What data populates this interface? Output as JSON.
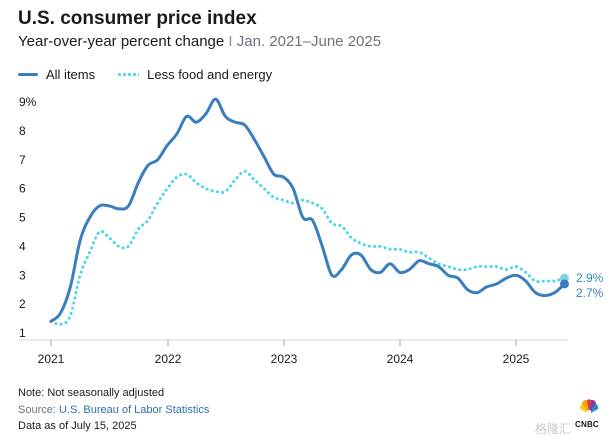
{
  "header": {
    "title": "U.S. consumer price index",
    "subtitle_main": "Year-over-year percent change",
    "subtitle_sep": " I ",
    "subtitle_range": "Jan. 2021–June 2025"
  },
  "colors": {
    "all_items": "#3a7ebf",
    "core": "#4ad6e6",
    "core_end_dot": "#7fd3e8",
    "axis_text": "#1a1a1a",
    "grid": "#e3e6ea"
  },
  "footer": {
    "note": "Note: Not seasonally adjusted",
    "source_prefix": "Source: ",
    "source_link": "U.S. Bureau of Labor Statistics",
    "asof": "Data as of July 15, 2025"
  },
  "logo": {
    "name": "cnbc-peacock-icon",
    "text": "CNBC"
  },
  "watermark": "格隆汇",
  "chart_data": {
    "type": "line",
    "x_start": "2021-01",
    "x_end": "2025-06",
    "ylim": [
      1,
      9
    ],
    "y_ticks": [
      "1",
      "2",
      "3",
      "4",
      "5",
      "6",
      "7",
      "8",
      "9%"
    ],
    "x_ticks": [
      "2021",
      "2022",
      "2023",
      "2024",
      "2025"
    ],
    "grid": false,
    "legend_position": "top-left",
    "series": [
      {
        "name": "All items",
        "style": "solid",
        "end_label": "2.7%",
        "x": [
          "2021-01",
          "2021-02",
          "2021-03",
          "2021-04",
          "2021-05",
          "2021-06",
          "2021-07",
          "2021-08",
          "2021-09",
          "2021-10",
          "2021-11",
          "2021-12",
          "2022-01",
          "2022-02",
          "2022-03",
          "2022-04",
          "2022-05",
          "2022-06",
          "2022-07",
          "2022-08",
          "2022-09",
          "2022-10",
          "2022-11",
          "2022-12",
          "2023-01",
          "2023-02",
          "2023-03",
          "2023-04",
          "2023-05",
          "2023-06",
          "2023-07",
          "2023-08",
          "2023-09",
          "2023-10",
          "2023-11",
          "2023-12",
          "2024-01",
          "2024-02",
          "2024-03",
          "2024-04",
          "2024-05",
          "2024-06",
          "2024-07",
          "2024-08",
          "2024-09",
          "2024-10",
          "2024-11",
          "2024-12",
          "2025-01",
          "2025-02",
          "2025-03",
          "2025-04",
          "2025-05",
          "2025-06"
        ],
        "values": [
          1.4,
          1.7,
          2.6,
          4.2,
          5.0,
          5.4,
          5.4,
          5.3,
          5.4,
          6.2,
          6.8,
          7.0,
          7.5,
          7.9,
          8.5,
          8.3,
          8.6,
          9.1,
          8.5,
          8.3,
          8.2,
          7.7,
          7.1,
          6.5,
          6.4,
          6.0,
          5.0,
          4.9,
          4.0,
          3.0,
          3.2,
          3.7,
          3.7,
          3.2,
          3.1,
          3.4,
          3.1,
          3.2,
          3.5,
          3.4,
          3.3,
          3.0,
          2.9,
          2.5,
          2.4,
          2.6,
          2.7,
          2.9,
          3.0,
          2.8,
          2.4,
          2.3,
          2.4,
          2.7
        ]
      },
      {
        "name": "Less food and energy",
        "style": "dotted",
        "end_label": "2.9%",
        "x": [
          "2021-01",
          "2021-02",
          "2021-03",
          "2021-04",
          "2021-05",
          "2021-06",
          "2021-07",
          "2021-08",
          "2021-09",
          "2021-10",
          "2021-11",
          "2021-12",
          "2022-01",
          "2022-02",
          "2022-03",
          "2022-04",
          "2022-05",
          "2022-06",
          "2022-07",
          "2022-08",
          "2022-09",
          "2022-10",
          "2022-11",
          "2022-12",
          "2023-01",
          "2023-02",
          "2023-03",
          "2023-04",
          "2023-05",
          "2023-06",
          "2023-07",
          "2023-08",
          "2023-09",
          "2023-10",
          "2023-11",
          "2023-12",
          "2024-01",
          "2024-02",
          "2024-03",
          "2024-04",
          "2024-05",
          "2024-06",
          "2024-07",
          "2024-08",
          "2024-09",
          "2024-10",
          "2024-11",
          "2024-12",
          "2025-01",
          "2025-02",
          "2025-03",
          "2025-04",
          "2025-05",
          "2025-06"
        ],
        "values": [
          1.4,
          1.3,
          1.6,
          3.0,
          3.8,
          4.5,
          4.3,
          4.0,
          4.0,
          4.6,
          4.9,
          5.5,
          6.0,
          6.4,
          6.5,
          6.2,
          6.0,
          5.9,
          5.9,
          6.3,
          6.6,
          6.3,
          6.0,
          5.7,
          5.6,
          5.5,
          5.6,
          5.5,
          5.3,
          4.8,
          4.7,
          4.3,
          4.1,
          4.0,
          4.0,
          3.9,
          3.9,
          3.8,
          3.8,
          3.6,
          3.4,
          3.3,
          3.2,
          3.2,
          3.3,
          3.3,
          3.3,
          3.2,
          3.3,
          3.1,
          2.8,
          2.8,
          2.8,
          2.9
        ]
      }
    ]
  }
}
